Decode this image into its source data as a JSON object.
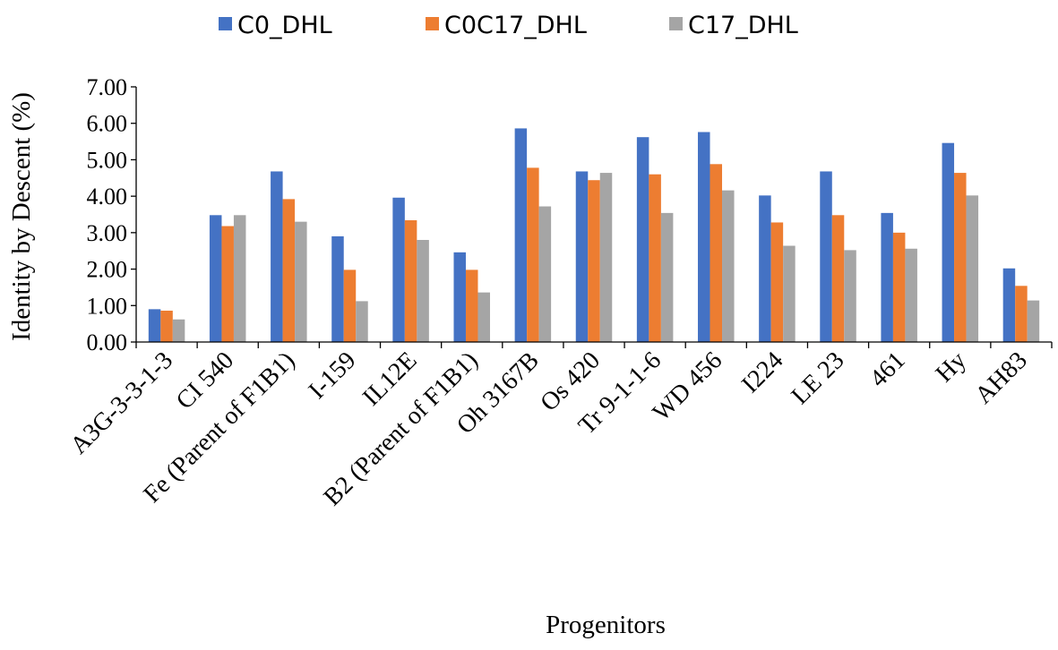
{
  "chart_data": {
    "type": "bar",
    "title": "",
    "xlabel": "Progenitors",
    "ylabel": "Identity by Descent (%)",
    "ylim": [
      0,
      7
    ],
    "yticks": [
      "0.00",
      "1.00",
      "2.00",
      "3.00",
      "4.00",
      "5.00",
      "6.00",
      "7.00"
    ],
    "grid": false,
    "legend_position": "top",
    "categories": [
      "A3G-3-3-1-3",
      "CI 540",
      "Fe (Parent of F1B1)",
      "I-159",
      "IL12E",
      "B2 (Parent of F1B1)",
      "Oh 3167B",
      "Os 420",
      "Tr 9-1-1-6",
      "WD 456",
      "I224",
      "LE 23",
      "461",
      "Hy",
      "AH83"
    ],
    "series": [
      {
        "name": "C0_DHL",
        "color": "#4472C4",
        "values": [
          0.9,
          3.48,
          4.68,
          2.9,
          3.96,
          2.46,
          5.86,
          4.68,
          5.62,
          5.76,
          4.02,
          4.68,
          3.54,
          5.46,
          2.02
        ]
      },
      {
        "name": "C0C17_DHL",
        "color": "#ED7D31",
        "values": [
          0.86,
          3.18,
          3.92,
          1.98,
          3.34,
          1.98,
          4.78,
          4.44,
          4.6,
          4.88,
          3.28,
          3.48,
          3.0,
          4.64,
          1.54
        ]
      },
      {
        "name": "C17_DHL",
        "color": "#A5A5A5",
        "values": [
          0.62,
          3.48,
          3.3,
          1.12,
          2.8,
          1.36,
          3.72,
          4.64,
          3.54,
          4.16,
          2.64,
          2.52,
          2.56,
          4.02,
          1.14
        ]
      }
    ]
  }
}
